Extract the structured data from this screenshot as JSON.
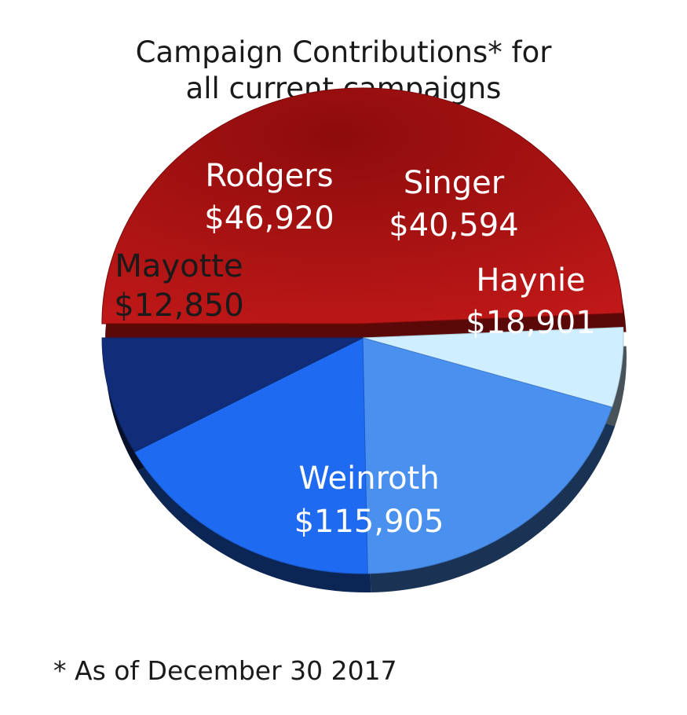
{
  "chart_data": {
    "type": "pie",
    "title_lines": [
      "Campaign Contributions* for",
      "all current campaigns"
    ],
    "slices": [
      {
        "name": "Weinroth",
        "value": 115905,
        "value_label": "$115,905",
        "color": "#b51212",
        "label_color": "#ffffff"
      },
      {
        "name": "Mayotte",
        "value": 12850,
        "value_label": "$12,850",
        "color": "#cfeeff",
        "label_color": "#1a1a1a"
      },
      {
        "name": "Rodgers",
        "value": 46920,
        "value_label": "$46,920",
        "color": "#4a90ef",
        "label_color": "#ffffff"
      },
      {
        "name": "Singer",
        "value": 40594,
        "value_label": "$40,594",
        "color": "#1e6af0",
        "label_color": "#ffffff"
      },
      {
        "name": "Haynie",
        "value": 18901,
        "value_label": "$18,901",
        "color": "#112d7a",
        "label_color": "#ffffff"
      }
    ]
  },
  "footnote": "* As of December 30 2017"
}
